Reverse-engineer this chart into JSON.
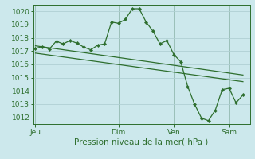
{
  "bg_color": "#cce8ec",
  "grid_color": "#b0d0d4",
  "line_color": "#2d6e2d",
  "marker_color": "#2d6e2d",
  "xlabel": "Pression niveau de la mer( hPa )",
  "ylim": [
    1011.5,
    1020.5
  ],
  "yticks": [
    1012,
    1013,
    1014,
    1015,
    1016,
    1017,
    1018,
    1019,
    1020
  ],
  "xtick_labels": [
    "Jeu",
    "Dim",
    "Ven",
    "Sam"
  ],
  "xtick_positions": [
    0,
    36,
    60,
    84
  ],
  "xlim": [
    -1,
    93
  ],
  "series1": [
    [
      0,
      1017.2
    ],
    [
      3,
      1017.35
    ],
    [
      6,
      1017.15
    ],
    [
      9,
      1017.75
    ],
    [
      12,
      1017.55
    ],
    [
      15,
      1017.8
    ],
    [
      18,
      1017.6
    ],
    [
      21,
      1017.3
    ],
    [
      24,
      1017.1
    ],
    [
      27,
      1017.45
    ],
    [
      30,
      1017.55
    ],
    [
      33,
      1019.2
    ],
    [
      36,
      1019.1
    ],
    [
      39,
      1019.4
    ],
    [
      42,
      1020.2
    ],
    [
      45,
      1020.2
    ],
    [
      48,
      1019.2
    ],
    [
      51,
      1018.5
    ],
    [
      54,
      1017.55
    ],
    [
      57,
      1017.8
    ],
    [
      60,
      1016.75
    ],
    [
      63,
      1016.2
    ],
    [
      66,
      1014.35
    ],
    [
      69,
      1013.0
    ],
    [
      72,
      1011.95
    ],
    [
      75,
      1011.75
    ],
    [
      78,
      1012.55
    ],
    [
      81,
      1014.1
    ],
    [
      84,
      1014.2
    ],
    [
      87,
      1013.1
    ],
    [
      90,
      1013.7
    ]
  ],
  "series2_line": [
    [
      0,
      1017.4
    ],
    [
      90,
      1015.2
    ]
  ],
  "series3_line": [
    [
      0,
      1016.85
    ],
    [
      90,
      1014.7
    ]
  ]
}
